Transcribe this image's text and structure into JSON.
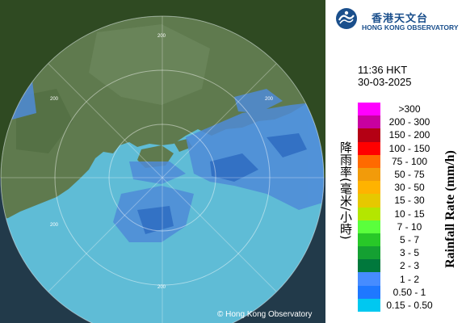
{
  "organization": {
    "name_zh": "香港天文台",
    "name_en": "HONG KONG OBSERVATORY",
    "copyright": "© Hong Kong Observatory",
    "brand_color": "#1a4f8c"
  },
  "timestamp": {
    "time": "11:36 HKT",
    "date": "30-03-2025"
  },
  "map": {
    "icon": "radar-map",
    "range_ring_labels": [
      "200",
      "200",
      "200",
      "200",
      "200"
    ],
    "colors": {
      "sea": "#5fbcd6",
      "land": "#5f7a4e",
      "outside": "#2f4a22",
      "rain": "#4f8bd8"
    }
  },
  "legend": {
    "title_zh": "降雨率(毫米/小時)",
    "title_en": "Rainfall Rate (mm/h)",
    "items": [
      {
        "label": ">300",
        "color": "#ff00ff"
      },
      {
        "label": "200 - 300",
        "color": "#c800a0"
      },
      {
        "label": "150 - 200",
        "color": "#b40014"
      },
      {
        "label": "100 - 150",
        "color": "#ff0000"
      },
      {
        "label": "75 - 100",
        "color": "#ff6a00"
      },
      {
        "label": "50 - 75",
        "color": "#f29b0a"
      },
      {
        "label": "30 - 50",
        "color": "#ffb300"
      },
      {
        "label": "15 - 30",
        "color": "#e6c800"
      },
      {
        "label": "10 - 15",
        "color": "#b4e600"
      },
      {
        "label": "7 - 10",
        "color": "#5aff3c"
      },
      {
        "label": "5 - 7",
        "color": "#28c828"
      },
      {
        "label": "3 - 5",
        "color": "#14a032"
      },
      {
        "label": "2 - 3",
        "color": "#00783c"
      },
      {
        "label": "1 - 2",
        "color": "#468cff"
      },
      {
        "label": "0.50 - 1",
        "color": "#1e78ff"
      },
      {
        "label": "0.15 - 0.50",
        "color": "#00c8f0"
      }
    ]
  }
}
